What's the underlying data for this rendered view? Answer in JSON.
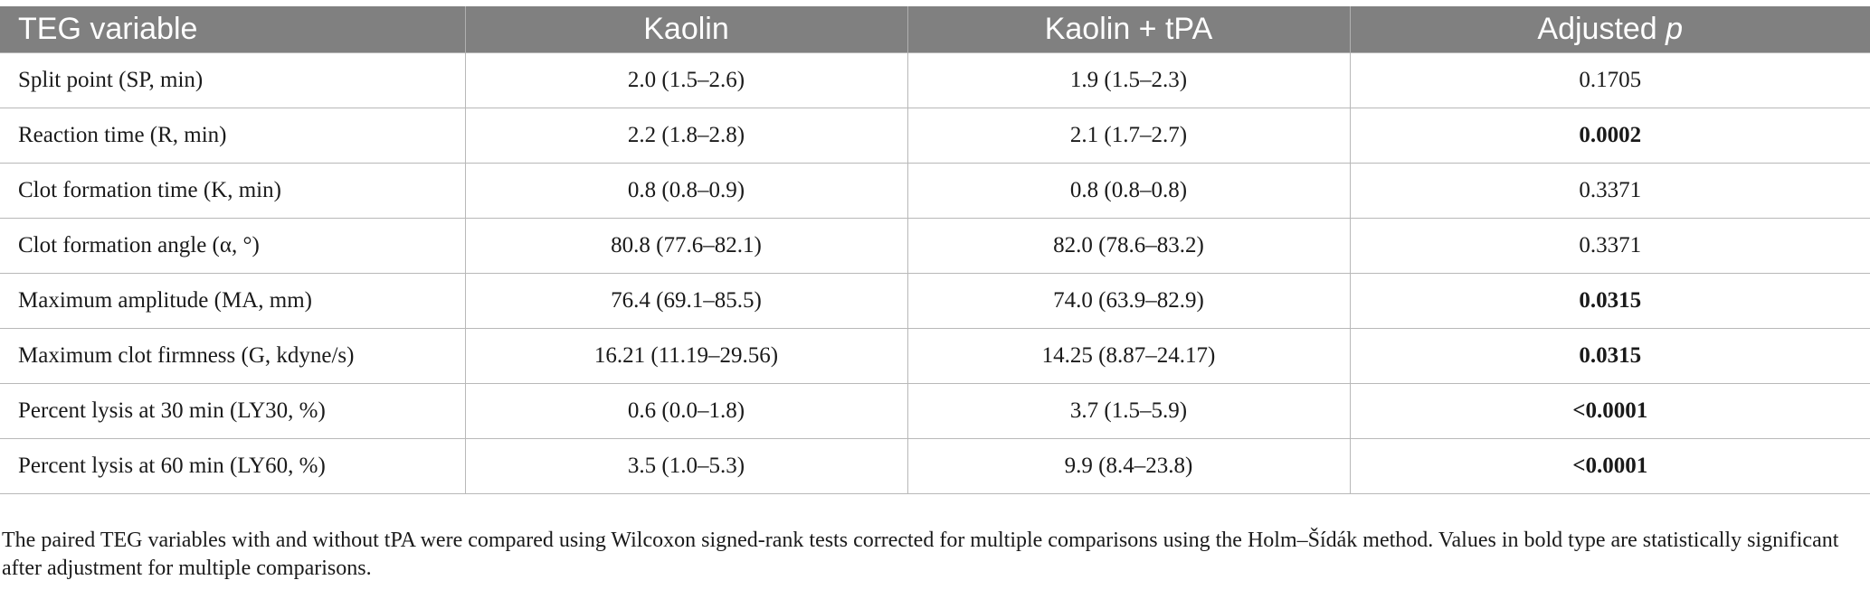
{
  "table": {
    "headers": {
      "col1": "TEG variable",
      "col2": "Kaolin",
      "col3": "Kaolin + tPA",
      "col4_prefix": "Adjusted ",
      "col4_italic": "p"
    },
    "rows": [
      {
        "variable": "Split point (SP, min)",
        "kaolin": "2.0 (1.5–2.6)",
        "kaolin_tpa": "1.9 (1.5–2.3)",
        "adjusted_p": "0.1705",
        "significant": false
      },
      {
        "variable": "Reaction time (R, min)",
        "kaolin": "2.2 (1.8–2.8)",
        "kaolin_tpa": "2.1 (1.7–2.7)",
        "adjusted_p": "0.0002",
        "significant": true
      },
      {
        "variable": "Clot formation time (K, min)",
        "kaolin": "0.8 (0.8–0.9)",
        "kaolin_tpa": "0.8 (0.8–0.8)",
        "adjusted_p": "0.3371",
        "significant": false
      },
      {
        "variable": "Clot formation angle (α, °)",
        "kaolin": "80.8 (77.6–82.1)",
        "kaolin_tpa": "82.0 (78.6–83.2)",
        "adjusted_p": "0.3371",
        "significant": false
      },
      {
        "variable": "Maximum amplitude (MA, mm)",
        "kaolin": "76.4 (69.1–85.5)",
        "kaolin_tpa": "74.0 (63.9–82.9)",
        "adjusted_p": "0.0315",
        "significant": true
      },
      {
        "variable": "Maximum clot firmness (G, kdyne/s)",
        "kaolin": "16.21 (11.19–29.56)",
        "kaolin_tpa": "14.25 (8.87–24.17)",
        "adjusted_p": "0.0315",
        "significant": true
      },
      {
        "variable": "Percent lysis at 30 min (LY30, %)",
        "kaolin": "0.6 (0.0–1.8)",
        "kaolin_tpa": "3.7 (1.5–5.9)",
        "adjusted_p": "<0.0001",
        "significant": true
      },
      {
        "variable": "Percent lysis at 60 min (LY60, %)",
        "kaolin": "3.5 (1.0–5.3)",
        "kaolin_tpa": "9.9 (8.4–23.8)",
        "adjusted_p": "<0.0001",
        "significant": true
      }
    ]
  },
  "footnote": "The paired TEG variables with and without tPA were compared using Wilcoxon signed-rank tests corrected for multiple comparisons using the Holm–Šídák method. Values in bold type are statistically significant after adjustment for multiple comparisons."
}
